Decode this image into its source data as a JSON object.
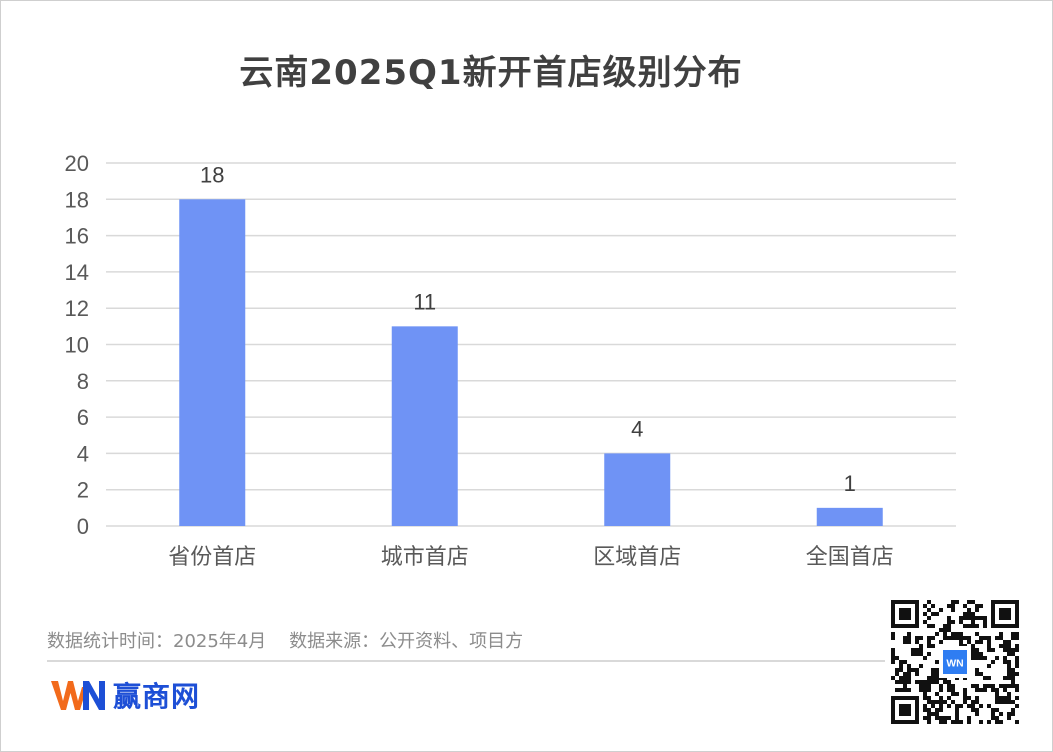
{
  "title": "云南2025Q1新开首店级别分布",
  "chart_data": {
    "type": "bar",
    "title": "云南2025Q1新开首店级别分布",
    "categories": [
      "省份首店",
      "城市首店",
      "区域首店",
      "全国首店"
    ],
    "values": [
      18,
      11,
      4,
      1
    ],
    "data_labels": [
      "18",
      "11",
      "4",
      "1"
    ],
    "ylim": [
      0,
      20
    ],
    "yticks": [
      0,
      2,
      4,
      6,
      8,
      10,
      12,
      14,
      16,
      18,
      20
    ],
    "grid": true,
    "legend": "none",
    "bar_color": "#6f93f5"
  },
  "footer": {
    "note": "数据统计时间：2025年4月    数据来源：公开资料、项目方",
    "brand_mark": "WN",
    "brand_name": "赢商网"
  },
  "colors": {
    "bar": "#6f93f5",
    "brand_orange": "#f26a1b",
    "brand_blue": "#1d4fd6",
    "gridline": "#d9d9d9"
  },
  "icons": [
    "winshang-logo-icon",
    "qr-code-icon"
  ]
}
